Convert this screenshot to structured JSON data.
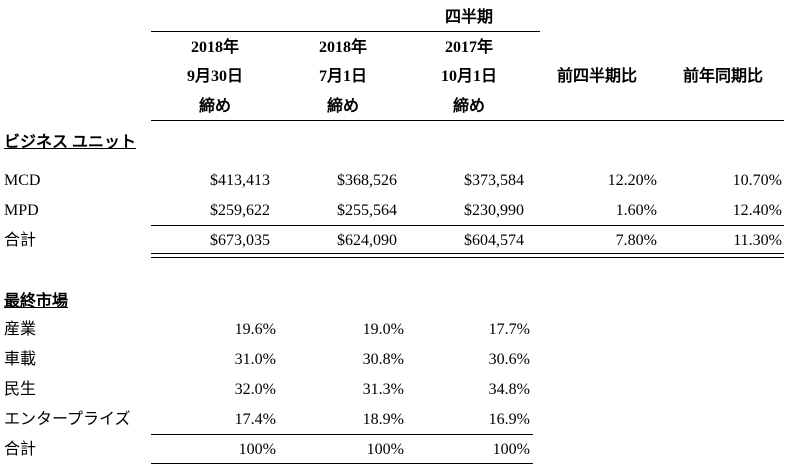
{
  "header": {
    "group_title": "四半期",
    "columns": [
      {
        "line1": "2018年",
        "line2": "9月30日",
        "line3": "締め"
      },
      {
        "line1": "2018年",
        "line2": "7月1日",
        "line3": "締め"
      },
      {
        "line1": "2017年",
        "line2": "10月1日",
        "line3": "締め"
      },
      {
        "line1": "前四半期比"
      },
      {
        "line1": "前年同期比"
      }
    ]
  },
  "business_units": {
    "section_title": "ビジネス ユニット",
    "rows": [
      {
        "label": "MCD",
        "values": [
          "$413,413",
          "$368,526",
          "$373,584",
          "12.20%",
          "10.70%"
        ]
      },
      {
        "label": "MPD",
        "values": [
          "$259,622",
          "$255,564",
          "$230,990",
          "1.60%",
          "12.40%"
        ]
      }
    ],
    "total": {
      "label": "合計",
      "values": [
        "$673,035",
        "$624,090",
        "$604,574",
        "7.80%",
        "11.30%"
      ]
    }
  },
  "end_markets": {
    "section_title": "最終市場",
    "rows": [
      {
        "label": "産業",
        "values": [
          "19.6%",
          "19.0%",
          "17.7%"
        ]
      },
      {
        "label": "車載",
        "values": [
          "31.0%",
          "30.8%",
          "30.6%"
        ]
      },
      {
        "label": "民生",
        "values": [
          "32.0%",
          "31.3%",
          "34.8%"
        ]
      },
      {
        "label": "エンタープライズ",
        "values": [
          "17.4%",
          "18.9%",
          "16.9%"
        ]
      }
    ],
    "total": {
      "label": "合計",
      "values": [
        "100%",
        "100%",
        "100%"
      ]
    }
  }
}
